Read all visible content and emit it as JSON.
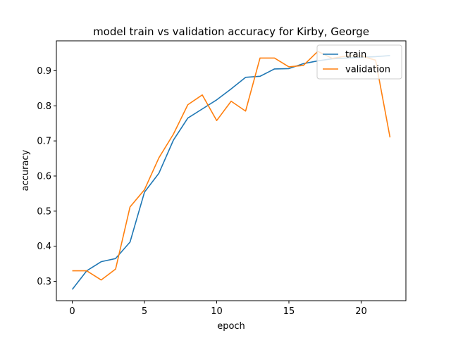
{
  "chart_data": {
    "type": "line",
    "title": "model train vs validation accuracy for Kirby, George",
    "xlabel": "epoch",
    "ylabel": "accuracy",
    "xlim": [
      -1.1,
      23.1
    ],
    "ylim": [
      0.245,
      0.985
    ],
    "xticks": [
      0,
      5,
      10,
      15,
      20
    ],
    "yticks": [
      0.3,
      0.4,
      0.5,
      0.6,
      0.7,
      0.8,
      0.9
    ],
    "grid": false,
    "legend_position": "top-right",
    "x": [
      0,
      1,
      2,
      3,
      4,
      5,
      6,
      7,
      8,
      9,
      10,
      11,
      12,
      13,
      14,
      15,
      16,
      17,
      18,
      19,
      20,
      21,
      22
    ],
    "series": [
      {
        "name": "train",
        "color": "#1f77b4",
        "values": [
          0.277,
          0.33,
          0.356,
          0.365,
          0.412,
          0.554,
          0.608,
          0.702,
          0.765,
          0.791,
          0.817,
          0.848,
          0.881,
          0.884,
          0.905,
          0.906,
          0.92,
          0.928,
          0.934,
          0.936,
          0.938,
          0.94,
          0.943
        ]
      },
      {
        "name": "validation",
        "color": "#ff7f0e",
        "values": [
          0.33,
          0.33,
          0.304,
          0.335,
          0.512,
          0.561,
          0.652,
          0.719,
          0.803,
          0.831,
          0.758,
          0.813,
          0.785,
          0.936,
          0.936,
          0.911,
          0.915,
          0.955,
          0.935,
          0.942,
          0.942,
          0.93,
          0.71
        ]
      }
    ]
  }
}
